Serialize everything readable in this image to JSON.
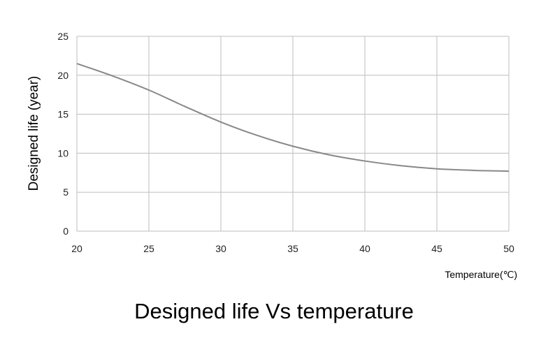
{
  "chart_data": {
    "type": "line",
    "title": "Designed life Vs temperature",
    "xlabel": "Temperature(℃)",
    "ylabel": "Designed life (year)",
    "xlim": [
      20,
      50
    ],
    "ylim": [
      0,
      25
    ],
    "xticks": [
      20,
      25,
      30,
      35,
      40,
      45,
      50
    ],
    "yticks": [
      0,
      5,
      10,
      15,
      20,
      25
    ],
    "grid": true,
    "legend": "none",
    "series": [
      {
        "color": "#888888",
        "x": [
          20,
          22.5,
          25,
          27.5,
          30,
          32.5,
          35,
          37.5,
          40,
          42.5,
          45,
          47.5,
          50
        ],
        "y": [
          21.5,
          19.9,
          18.1,
          16.0,
          14.0,
          12.3,
          10.9,
          9.8,
          9.0,
          8.4,
          8.0,
          7.8,
          7.7
        ]
      }
    ]
  }
}
